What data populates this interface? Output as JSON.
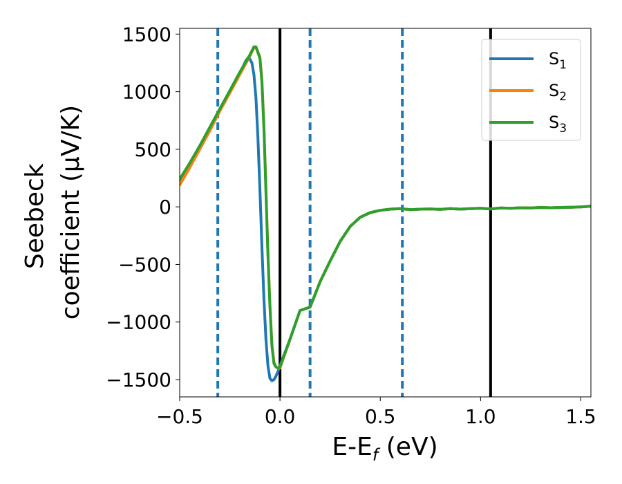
{
  "chart_data": {
    "type": "line",
    "xlabel_main": "E-E",
    "xlabel_sub": "f",
    "xlabel_unit": " (eV)",
    "ylabel_line1": "Seebeck",
    "ylabel_line2": "coefficient  (μV/K)",
    "xlim": [
      -0.5,
      1.55
    ],
    "ylim": [
      -1650,
      1550
    ],
    "xticks": [
      -0.5,
      0.0,
      0.5,
      1.0,
      1.5
    ],
    "xtick_labels": [
      "−0.5",
      "0.0",
      "0.5",
      "1.0",
      "1.5"
    ],
    "yticks": [
      -1500,
      -1000,
      -500,
      0,
      500,
      1000,
      1500
    ],
    "ytick_labels": [
      "−1500",
      "−1000",
      "−500",
      "0",
      "500",
      "1000",
      "1500"
    ],
    "grid": false,
    "legend_position": "top-right",
    "vlines_solid": [
      0.0,
      1.05
    ],
    "vlines_dashed": [
      -0.31,
      0.15,
      0.61
    ],
    "vline_solid_color": "#000000",
    "vline_dashed_color": "#1f77b4",
    "series": [
      {
        "name": "S",
        "subscript": "1",
        "color": "#1f77b4",
        "x": [
          -0.5,
          -0.45,
          -0.4,
          -0.35,
          -0.3,
          -0.25,
          -0.2,
          -0.17,
          -0.155,
          -0.14,
          -0.13,
          -0.12,
          -0.11,
          -0.1,
          -0.09,
          -0.08,
          -0.07,
          -0.06,
          -0.05,
          -0.04,
          -0.03,
          -0.02,
          -0.01,
          0.0,
          0.05,
          0.1,
          0.15,
          0.2,
          0.25,
          0.3,
          0.35,
          0.4,
          0.45,
          0.5,
          0.55,
          0.6,
          0.65,
          0.7,
          0.75,
          0.8,
          0.85,
          0.9,
          0.95,
          1.0,
          1.05,
          1.1,
          1.15,
          1.2,
          1.25,
          1.3,
          1.35,
          1.4,
          1.45,
          1.5,
          1.55
        ],
        "y": [
          200,
          350,
          510,
          670,
          840,
          1000,
          1160,
          1270,
          1300,
          1250,
          1150,
          950,
          600,
          150,
          -350,
          -800,
          -1150,
          -1380,
          -1490,
          -1510,
          -1500,
          -1470,
          -1430,
          -1380,
          -1150,
          -900,
          -870,
          -650,
          -470,
          -300,
          -170,
          -90,
          -50,
          -30,
          -20,
          -15,
          -25,
          -20,
          -18,
          -22,
          -15,
          -20,
          -15,
          -12,
          -18,
          -10,
          -12,
          -8,
          -10,
          -5,
          -8,
          -5,
          -3,
          0,
          5
        ]
      },
      {
        "name": "S",
        "subscript": "2",
        "color": "#ff7f0e",
        "x": [
          -0.5,
          -0.45,
          -0.4,
          -0.35,
          -0.3,
          -0.25,
          -0.2,
          -0.15,
          -0.13,
          -0.12,
          -0.1,
          -0.09,
          -0.08,
          -0.07,
          -0.06,
          -0.05,
          -0.04,
          -0.03,
          -0.02,
          -0.01,
          0.0,
          0.05,
          0.1,
          0.15,
          0.2,
          0.25,
          0.3,
          0.35,
          0.4,
          0.45,
          0.5,
          0.55,
          0.6,
          0.65,
          0.7,
          0.75,
          0.8,
          0.85,
          0.9,
          0.95,
          1.0,
          1.05,
          1.1,
          1.15,
          1.2,
          1.25,
          1.3,
          1.35,
          1.4,
          1.45,
          1.5,
          1.55
        ],
        "y": [
          190,
          340,
          500,
          660,
          830,
          990,
          1150,
          1310,
          1380,
          1390,
          1300,
          1100,
          700,
          150,
          -400,
          -850,
          -1200,
          -1350,
          -1390,
          -1400,
          -1400,
          -1150,
          -900,
          -870,
          -650,
          -470,
          -300,
          -170,
          -90,
          -50,
          -30,
          -20,
          -15,
          -25,
          -20,
          -18,
          -22,
          -15,
          -20,
          -15,
          -12,
          -18,
          -10,
          -12,
          -8,
          -10,
          -5,
          -8,
          -5,
          -3,
          0,
          5
        ]
      },
      {
        "name": "S",
        "subscript": "3",
        "color": "#2ca02c",
        "x": [
          -0.5,
          -0.45,
          -0.4,
          -0.35,
          -0.3,
          -0.25,
          -0.2,
          -0.15,
          -0.13,
          -0.12,
          -0.1,
          -0.09,
          -0.08,
          -0.07,
          -0.06,
          -0.05,
          -0.04,
          -0.03,
          -0.02,
          -0.01,
          0.0,
          0.05,
          0.1,
          0.15,
          0.2,
          0.25,
          0.3,
          0.35,
          0.4,
          0.45,
          0.5,
          0.55,
          0.6,
          0.65,
          0.7,
          0.75,
          0.8,
          0.85,
          0.9,
          0.95,
          1.0,
          1.05,
          1.1,
          1.15,
          1.2,
          1.25,
          1.3,
          1.35,
          1.4,
          1.45,
          1.5,
          1.55
        ],
        "y": [
          240,
          380,
          530,
          690,
          850,
          1010,
          1170,
          1320,
          1390,
          1390,
          1290,
          1080,
          680,
          130,
          -420,
          -870,
          -1210,
          -1360,
          -1390,
          -1400,
          -1390,
          -1150,
          -900,
          -870,
          -650,
          -470,
          -300,
          -170,
          -90,
          -50,
          -30,
          -20,
          -15,
          -25,
          -20,
          -18,
          -22,
          -15,
          -20,
          -15,
          -12,
          -18,
          -10,
          -12,
          -8,
          -10,
          -5,
          -8,
          -5,
          -3,
          0,
          5
        ]
      }
    ]
  }
}
